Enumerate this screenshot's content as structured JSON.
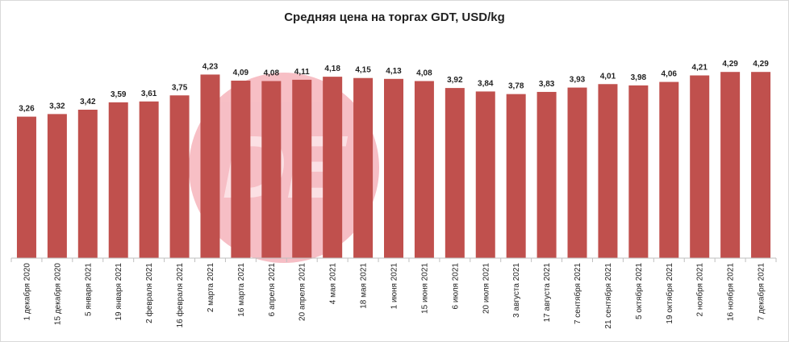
{
  "chart_data": {
    "type": "bar",
    "title": "Средняя цена на торгах GDT, USD/kg",
    "categories": [
      "1 декабря 2020",
      "15 декабря 2020",
      "5 января 2021",
      "19 января 2021",
      "2 февраля 2021",
      "16 февраля 2021",
      "2 марта 2021",
      "16 марта 2021",
      "6 апреля 2021",
      "20 апреля 2021",
      "4 мая 2021",
      "18 мая 2021",
      "1 июня 2021",
      "15 июня 2021",
      "6 июля 2021",
      "20 июля 2021",
      "3 августа 2021",
      "17 августа 2021",
      "7 сентября 2021",
      "21 сентября 2021",
      "5 октября 2021",
      "19 октября 2021",
      "2 ноября 2021",
      "16 ноября 2021",
      "7 декабря 2021"
    ],
    "values": [
      3.26,
      3.32,
      3.42,
      3.59,
      3.61,
      3.75,
      4.23,
      4.09,
      4.08,
      4.11,
      4.18,
      4.15,
      4.13,
      4.08,
      3.92,
      3.84,
      3.78,
      3.83,
      3.93,
      4.01,
      3.98,
      4.06,
      4.21,
      4.29,
      4.29
    ],
    "value_labels": [
      "3,26",
      "3,32",
      "3,42",
      "3,59",
      "3,61",
      "3,75",
      "4,23",
      "4,09",
      "4,08",
      "4,11",
      "4,18",
      "4,15",
      "4,13",
      "4,08",
      "3,92",
      "3,84",
      "3,78",
      "3,83",
      "3,93",
      "4,01",
      "3,98",
      "4,06",
      "4,21",
      "4,29",
      "4,29"
    ],
    "color": "#c0504d"
  }
}
